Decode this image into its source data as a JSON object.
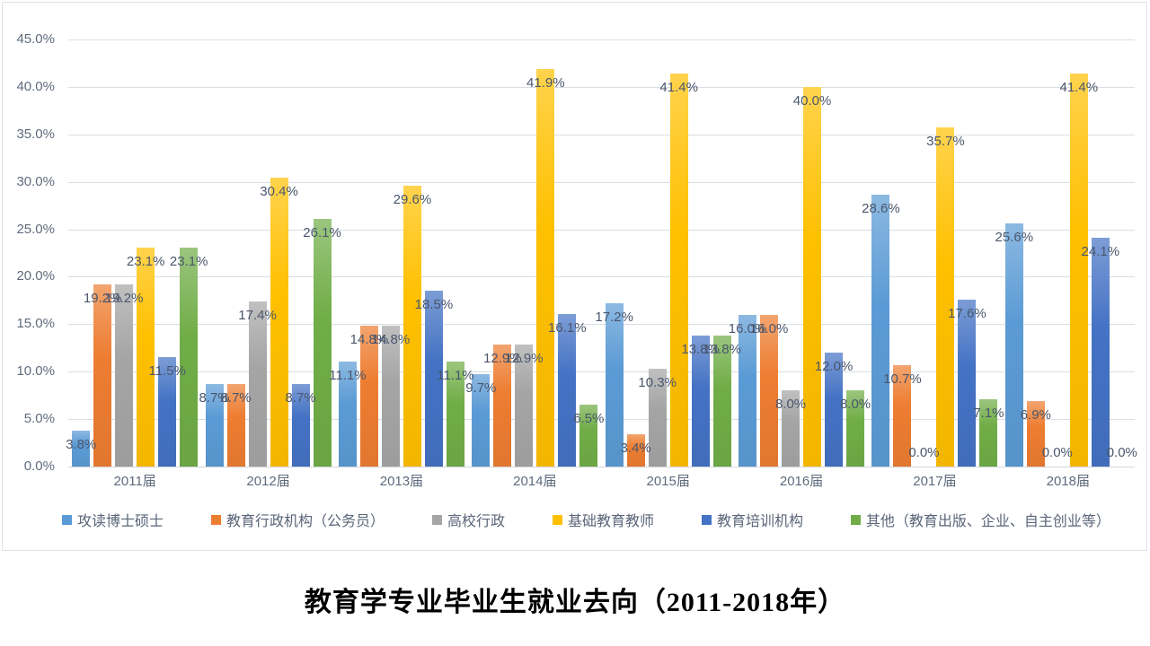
{
  "title": "教育学专业毕业生就业去向（2011-2018年）",
  "chart_data": {
    "type": "bar",
    "title": "教育学专业毕业生就业去向（2011-2018年）",
    "categories": [
      "2011届",
      "2012届",
      "2013届",
      "2014届",
      "2015届",
      "2016届",
      "2017届",
      "2018届"
    ],
    "series": [
      {
        "name": "攻读博士硕士",
        "color": "#5B9BD5",
        "values": [
          3.8,
          8.7,
          11.1,
          9.7,
          17.2,
          16.0,
          28.6,
          25.6
        ]
      },
      {
        "name": "教育行政机构（公务员）",
        "color": "#ED7D31",
        "values": [
          19.2,
          8.7,
          14.8,
          12.9,
          3.4,
          16.0,
          10.7,
          6.9
        ]
      },
      {
        "name": "高校行政",
        "color": "#A5A5A5",
        "values": [
          19.2,
          17.4,
          14.8,
          12.9,
          10.3,
          8.0,
          0.0,
          0.0
        ]
      },
      {
        "name": "基础教育教师",
        "color": "#FFC000",
        "values": [
          23.1,
          30.4,
          29.6,
          41.9,
          41.4,
          40.0,
          35.7,
          41.4
        ]
      },
      {
        "name": "教育培训机构",
        "color": "#4472C4",
        "values": [
          11.5,
          8.7,
          18.5,
          16.1,
          13.8,
          12.0,
          17.6,
          24.1
        ]
      },
      {
        "name": "其他（教育出版、企业、自主创业等）",
        "color": "#70AD47",
        "values": [
          23.1,
          26.1,
          11.1,
          6.5,
          13.8,
          8.0,
          7.1,
          0.0
        ]
      }
    ],
    "xlabel": "",
    "ylabel": "",
    "ylim": [
      0,
      45
    ],
    "y_ticks": [
      "0.0%",
      "5.0%",
      "10.0%",
      "15.0%",
      "20.0%",
      "25.0%",
      "30.0%",
      "35.0%",
      "40.0%",
      "45.0%"
    ],
    "grid": true,
    "legend_position": "bottom",
    "data_labels": "inside-end, one decimal percent"
  }
}
